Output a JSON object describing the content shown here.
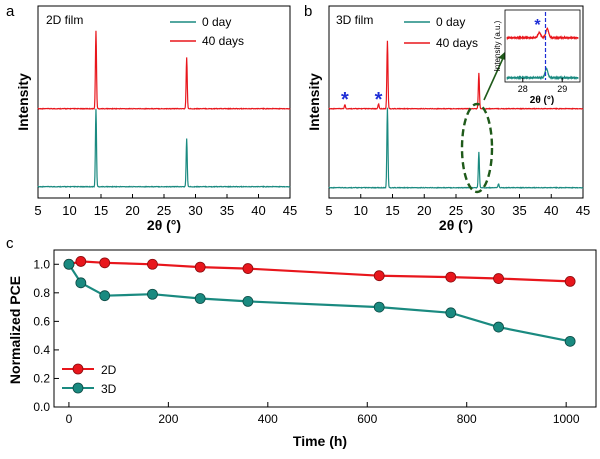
{
  "panels": {
    "a": {
      "letter": "a",
      "label": "2D film"
    },
    "b": {
      "letter": "b",
      "label": "3D film"
    },
    "c": {
      "letter": "c"
    }
  },
  "colors": {
    "red": "#e8161c",
    "teal": "#1a8a80",
    "blue_marker": "#1f2fd6",
    "ellipse": "#1f5a1a"
  },
  "chart_data": [
    {
      "panel": "a",
      "type": "line",
      "title": "2D film",
      "xlabel": "2θ (°)",
      "ylabel": "Intensity",
      "xlim": [
        5,
        45
      ],
      "xticks": [
        5,
        10,
        15,
        20,
        25,
        30,
        35,
        40,
        45
      ],
      "legend": "top-right",
      "series": [
        {
          "name": "0 day",
          "color": "#1a8a80",
          "baseline": 0.0,
          "peaks": [
            {
              "x": 14.2,
              "h": 1.0
            },
            {
              "x": 28.6,
              "h": 0.62
            }
          ]
        },
        {
          "name": "40 days",
          "color": "#e8161c",
          "baseline": 1.0,
          "peaks": [
            {
              "x": 14.2,
              "h": 1.0
            },
            {
              "x": 28.6,
              "h": 0.66
            }
          ]
        }
      ]
    },
    {
      "panel": "b",
      "type": "line",
      "title": "3D film",
      "xlabel": "2θ (°)",
      "ylabel": "Intensity",
      "xlim": [
        5,
        45
      ],
      "xticks": [
        5,
        10,
        15,
        20,
        25,
        30,
        35,
        40,
        45
      ],
      "legend": "top-right",
      "markers": [
        {
          "symbol": "*",
          "x": 7.5
        },
        {
          "symbol": "*",
          "x": 12.8
        }
      ],
      "series": [
        {
          "name": "0 day",
          "color": "#1a8a80",
          "baseline": 0.0,
          "peaks": [
            {
              "x": 14.2,
              "h": 1.0
            },
            {
              "x": 28.6,
              "h": 0.45
            },
            {
              "x": 31.7,
              "h": 0.05
            }
          ]
        },
        {
          "name": "40 days",
          "color": "#e8161c",
          "baseline": 1.0,
          "peaks": [
            {
              "x": 7.5,
              "h": 0.05
            },
            {
              "x": 12.8,
              "h": 0.06
            },
            {
              "x": 14.2,
              "h": 0.85
            },
            {
              "x": 28.6,
              "h": 0.45
            }
          ]
        }
      ],
      "inset": {
        "xlabel": "2θ (°)",
        "ylabel": "Intensity (a.u.)",
        "xticks": [
          28,
          29
        ],
        "xlim": [
          27.6,
          29.4
        ],
        "marker_x": 28.5,
        "series": [
          {
            "name": "0 day",
            "color": "#1a8a80",
            "baseline": 0.0,
            "peaks": [
              {
                "x": 28.6,
                "h": 0.45
              }
            ]
          },
          {
            "name": "40 days",
            "color": "#e8161c",
            "baseline": 1.0,
            "peaks": [
              {
                "x": 28.42,
                "h": 0.25
              },
              {
                "x": 28.62,
                "h": 0.45
              }
            ]
          }
        ]
      }
    },
    {
      "panel": "c",
      "type": "line",
      "xlabel": "Time (h)",
      "ylabel": "Normalized PCE",
      "xlim": [
        -30,
        1060
      ],
      "ylim": [
        0.0,
        1.1
      ],
      "xticks": [
        0,
        200,
        400,
        600,
        800,
        1000
      ],
      "yticks": [
        0.0,
        0.2,
        0.4,
        0.6,
        0.8,
        1.0
      ],
      "ytick_labels": [
        "0.0",
        "0.2",
        "0.4",
        "0.6",
        "0.8",
        "1.0"
      ],
      "legend": "bottom-left",
      "series": [
        {
          "name": "2D",
          "color": "#e8161c",
          "x": [
            0,
            24,
            72,
            168,
            264,
            360,
            624,
            768,
            864,
            1008
          ],
          "y": [
            1.0,
            1.02,
            1.01,
            1.0,
            0.98,
            0.97,
            0.92,
            0.91,
            0.9,
            0.88
          ]
        },
        {
          "name": "3D",
          "color": "#1a8a80",
          "x": [
            0,
            24,
            72,
            168,
            264,
            360,
            624,
            768,
            864,
            1008
          ],
          "y": [
            1.0,
            0.87,
            0.78,
            0.79,
            0.76,
            0.74,
            0.7,
            0.66,
            0.56,
            0.46
          ]
        }
      ]
    }
  ]
}
